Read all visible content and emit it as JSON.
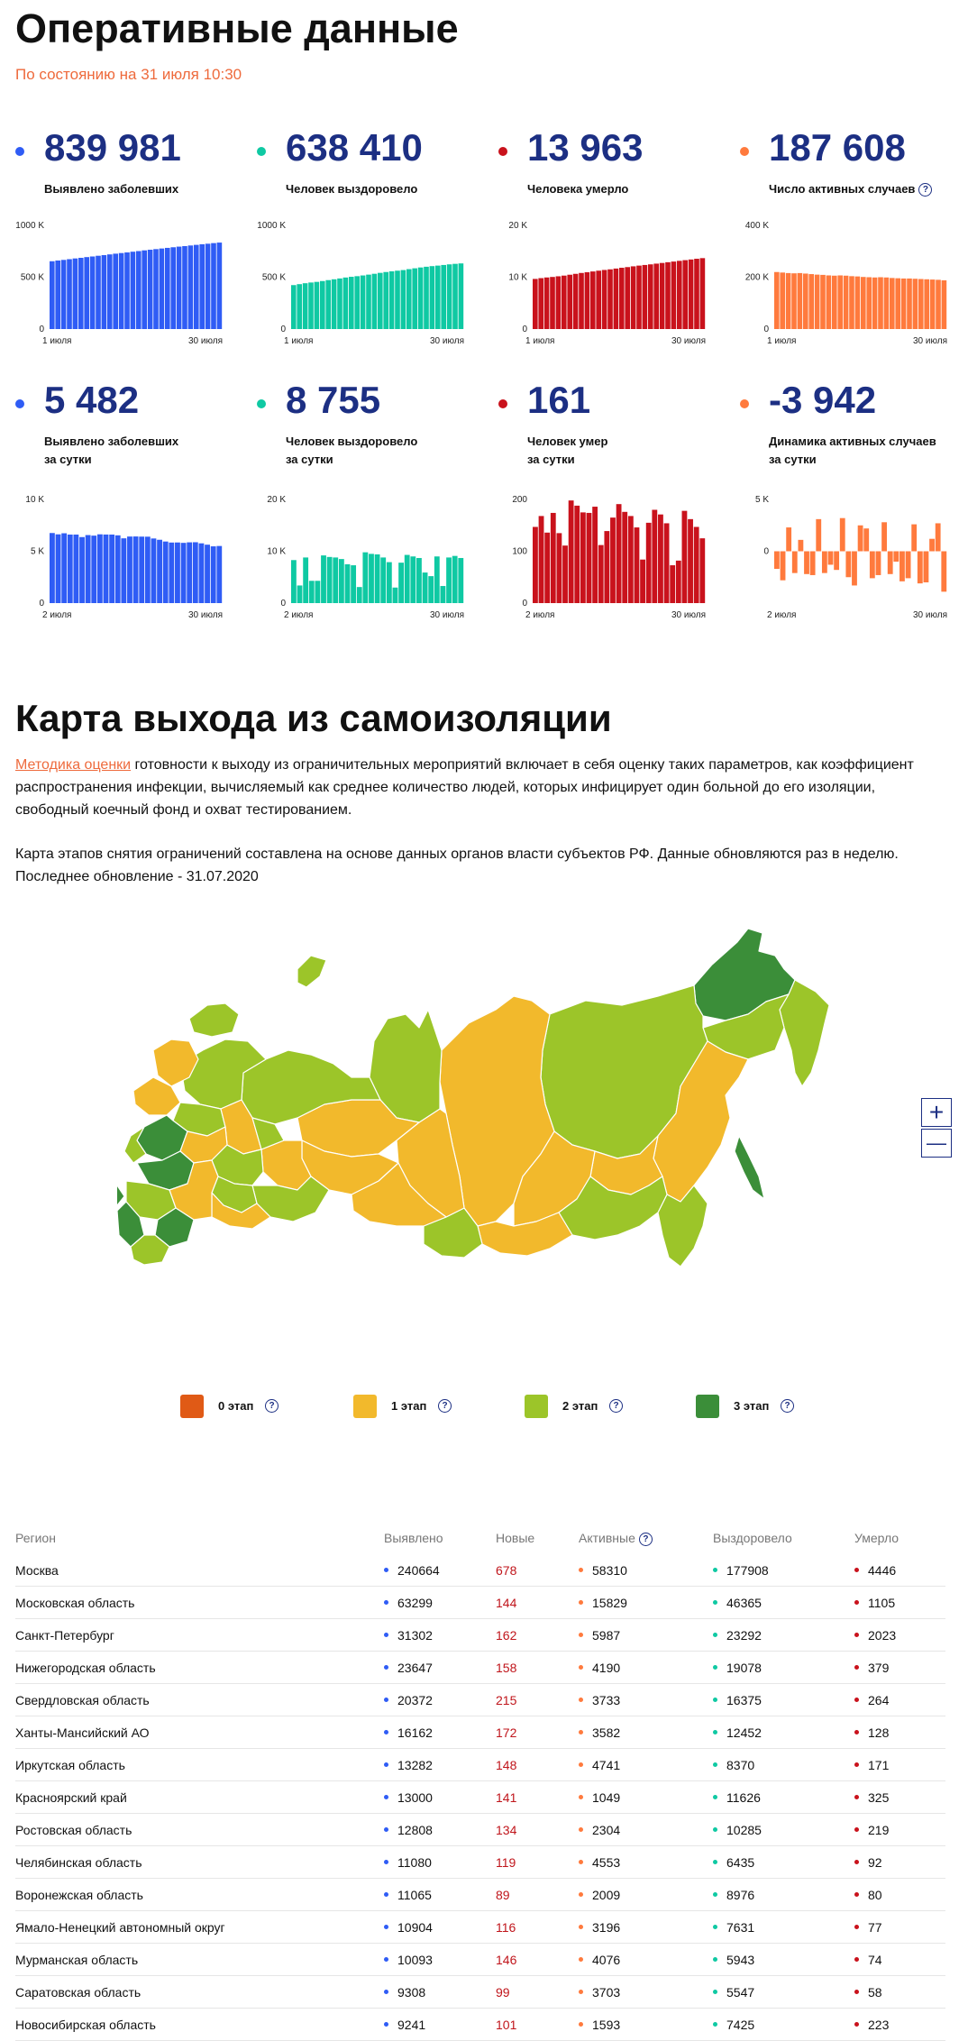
{
  "header": {
    "title": "Оперативные данные",
    "subtitle": "По состоянию на 31 июля 10:30"
  },
  "colors": {
    "blue": "#2f5cf5",
    "teal": "#0fc9a3",
    "red": "#c9121c",
    "orange": "#ff7a3d",
    "title_blue": "#1c2f83",
    "stage0": "#e05a16",
    "stage1": "#f2b92c",
    "stage2": "#9cc529",
    "stage3": "#3b8e39"
  },
  "stats": [
    {
      "value": "839 981",
      "label1": "Выявлено заболевших",
      "label2": "",
      "color": "#2f5cf5",
      "help": false,
      "chart_data": {
        "type": "bar",
        "y_ticks": [
          "1000 K",
          "500 K",
          "0"
        ],
        "ylim": [
          0,
          1000000
        ],
        "x_start": "1 июля",
        "x_end": "30 июля",
        "values": [
          654000,
          661000,
          667000,
          674000,
          681000,
          687000,
          694000,
          700000,
          707000,
          713000,
          720000,
          727000,
          733000,
          739000,
          746000,
          752000,
          759000,
          765000,
          771000,
          777000,
          783000,
          789000,
          795000,
          800000,
          806000,
          812000,
          818000,
          823000,
          829000,
          834000
        ]
      }
    },
    {
      "value": "638 410",
      "label1": "Человек выздоровело",
      "label2": "",
      "color": "#0fc9a3",
      "help": false,
      "chart_data": {
        "type": "bar",
        "y_ticks": [
          "1000 K",
          "500 K",
          "0"
        ],
        "ylim": [
          0,
          1000000
        ],
        "x_start": "1 июля",
        "x_end": "30 июля",
        "values": [
          424000,
          433000,
          442000,
          449000,
          455000,
          463000,
          472000,
          480000,
          488000,
          497000,
          504000,
          510000,
          517000,
          525000,
          533000,
          542000,
          550000,
          557000,
          563000,
          569000,
          578000,
          586000,
          594000,
          601000,
          607000,
          612000,
          618000,
          624000,
          629000,
          633000
        ]
      }
    },
    {
      "value": "13 963",
      "label1": "Человека умерло",
      "label2": "",
      "color": "#c9121c",
      "help": false,
      "chart_data": {
        "type": "bar",
        "y_ticks": [
          "20 K",
          "10 K",
          "0"
        ],
        "ylim": [
          0,
          20000
        ],
        "x_start": "1 июля",
        "x_end": "30 июля",
        "values": [
          9670,
          9820,
          9950,
          10050,
          10180,
          10310,
          10480,
          10650,
          10820,
          10960,
          11110,
          11260,
          11400,
          11520,
          11670,
          11820,
          11950,
          12100,
          12240,
          12360,
          12480,
          12620,
          12750,
          12890,
          13020,
          13160,
          13290,
          13420,
          13560,
          13680
        ]
      }
    },
    {
      "value": "187 608",
      "label1": "Число активных случаев",
      "label2": "",
      "color": "#ff7a3d",
      "help": true,
      "chart_data": {
        "type": "bar",
        "y_ticks": [
          "400 K",
          "200 K",
          "0"
        ],
        "ylim": [
          0,
          400000
        ],
        "x_start": "1 июля",
        "x_end": "30 июля",
        "values": [
          220000,
          218000,
          216000,
          215000,
          216000,
          214000,
          212000,
          210000,
          209000,
          207000,
          206000,
          207000,
          206000,
          204000,
          203000,
          201000,
          200000,
          199000,
          200000,
          199000,
          197000,
          196000,
          195000,
          195000,
          194000,
          193000,
          192000,
          191000,
          190000,
          188000
        ]
      }
    },
    {
      "value": "5 482",
      "label1": "Выявлено заболевших",
      "label2": "за сутки",
      "color": "#2f5cf5",
      "help": false,
      "chart_data": {
        "type": "bar",
        "y_ticks": [
          "10 K",
          "5 K",
          "0"
        ],
        "ylim": [
          0,
          10000
        ],
        "x_start": "2 июля",
        "x_end": "30 июля",
        "values": [
          6760,
          6632,
          6736,
          6611,
          6611,
          6368,
          6562,
          6509,
          6635,
          6615,
          6611,
          6537,
          6248,
          6422,
          6428,
          6413,
          6406,
          6234,
          6109,
          5940,
          5842,
          5848,
          5811,
          5862,
          5871,
          5765,
          5635,
          5475,
          5509
        ]
      }
    },
    {
      "value": "8 755",
      "label1": "Человек выздоровело",
      "label2": "за сутки",
      "color": "#0fc9a3",
      "help": false,
      "chart_data": {
        "type": "bar",
        "y_ticks": [
          "20 K",
          "10 K",
          "0"
        ],
        "ylim": [
          0,
          20000
        ],
        "x_start": "2 июля",
        "x_end": "30 июля",
        "values": [
          8300,
          3400,
          8800,
          4300,
          4300,
          9200,
          8900,
          8800,
          8500,
          7500,
          7300,
          3100,
          9800,
          9500,
          9400,
          8800,
          7900,
          3000,
          7800,
          9300,
          9000,
          8700,
          5900,
          5200,
          9000,
          3300,
          8800,
          9100,
          8700
        ]
      }
    },
    {
      "value": "161",
      "label1": "Человек умер",
      "label2": "за сутки",
      "color": "#c9121c",
      "help": false,
      "chart_data": {
        "type": "bar",
        "y_ticks": [
          "200",
          "100",
          "0"
        ],
        "ylim": [
          0,
          200
        ],
        "x_start": "2 июля",
        "x_end": "30 июля",
        "values": [
          147,
          168,
          136,
          174,
          135,
          111,
          198,
          188,
          175,
          174,
          186,
          112,
          139,
          165,
          191,
          176,
          168,
          146,
          84,
          155,
          180,
          171,
          154,
          73,
          82,
          178,
          162,
          147,
          125
        ]
      }
    },
    {
      "value": "-3 942",
      "label1": "Динамика активных случаев",
      "label2": "за сутки",
      "color": "#ff7a3d",
      "help": false,
      "chart_data": {
        "type": "bar",
        "y_ticks": [
          "5 K",
          "0",
          ""
        ],
        "ylim": [
          -5000,
          5000
        ],
        "x_start": "2 июля",
        "x_end": "30 июля",
        "values": [
          -1700,
          -2800,
          2300,
          -2100,
          1100,
          -2200,
          -2300,
          3100,
          -2100,
          -1300,
          -1800,
          3200,
          -2500,
          -3300,
          2500,
          2200,
          -2600,
          -2300,
          2800,
          -2200,
          -1000,
          -2900,
          -2600,
          2600,
          -3100,
          -3000,
          1200,
          2700,
          -3900
        ]
      }
    }
  ],
  "map": {
    "title": "Карта выхода из самоизоляции",
    "link_text": "Методика оценки",
    "desc_rest": " готовности к выходу из ограничительных мероприятий включает в себя оценку таких параметров, как коэффициент распространения инфекции, вычисляемый как среднее количество людей, которых инфицирует один больной до его изоляции, свободный коечный фонд и охват тестированием.",
    "desc2": "Карта этапов снятия ограничений составлена на основе данных органов власти субъектов РФ. Данные обновляются раз в неделю. Последнее обновление - 31.07.2020",
    "zoom_in": "+",
    "zoom_out": "—",
    "legend": [
      {
        "label": "0 этап",
        "color": "#e05a16"
      },
      {
        "label": "1 этап",
        "color": "#f2b92c"
      },
      {
        "label": "2 этап",
        "color": "#9cc529"
      },
      {
        "label": "3 этап",
        "color": "#3b8e39"
      }
    ]
  },
  "table": {
    "headers": [
      "Регион",
      "Выявлено",
      "Новые",
      "Активные",
      "Выздоровело",
      "Умерло"
    ],
    "rows": [
      [
        "Москва",
        "240664",
        "678",
        "58310",
        "177908",
        "4446"
      ],
      [
        "Московская область",
        "63299",
        "144",
        "15829",
        "46365",
        "1105"
      ],
      [
        "Санкт-Петербург",
        "31302",
        "162",
        "5987",
        "23292",
        "2023"
      ],
      [
        "Нижегородская область",
        "23647",
        "158",
        "4190",
        "19078",
        "379"
      ],
      [
        "Свердловская область",
        "20372",
        "215",
        "3733",
        "16375",
        "264"
      ],
      [
        "Ханты-Мансийский АО",
        "16162",
        "172",
        "3582",
        "12452",
        "128"
      ],
      [
        "Иркутская область",
        "13282",
        "148",
        "4741",
        "8370",
        "171"
      ],
      [
        "Красноярский край",
        "13000",
        "141",
        "1049",
        "11626",
        "325"
      ],
      [
        "Ростовская область",
        "12808",
        "134",
        "2304",
        "10285",
        "219"
      ],
      [
        "Челябинская область",
        "11080",
        "119",
        "4553",
        "6435",
        "92"
      ],
      [
        "Воронежская область",
        "11065",
        "89",
        "2009",
        "8976",
        "80"
      ],
      [
        "Ямало-Ненецкий автономный округ",
        "10904",
        "116",
        "3196",
        "7631",
        "77"
      ],
      [
        "Мурманская область",
        "10093",
        "146",
        "4076",
        "5943",
        "74"
      ],
      [
        "Саратовская область",
        "9308",
        "99",
        "3703",
        "5547",
        "58"
      ],
      [
        "Новосибирская область",
        "9241",
        "101",
        "1593",
        "7425",
        "223"
      ]
    ]
  }
}
